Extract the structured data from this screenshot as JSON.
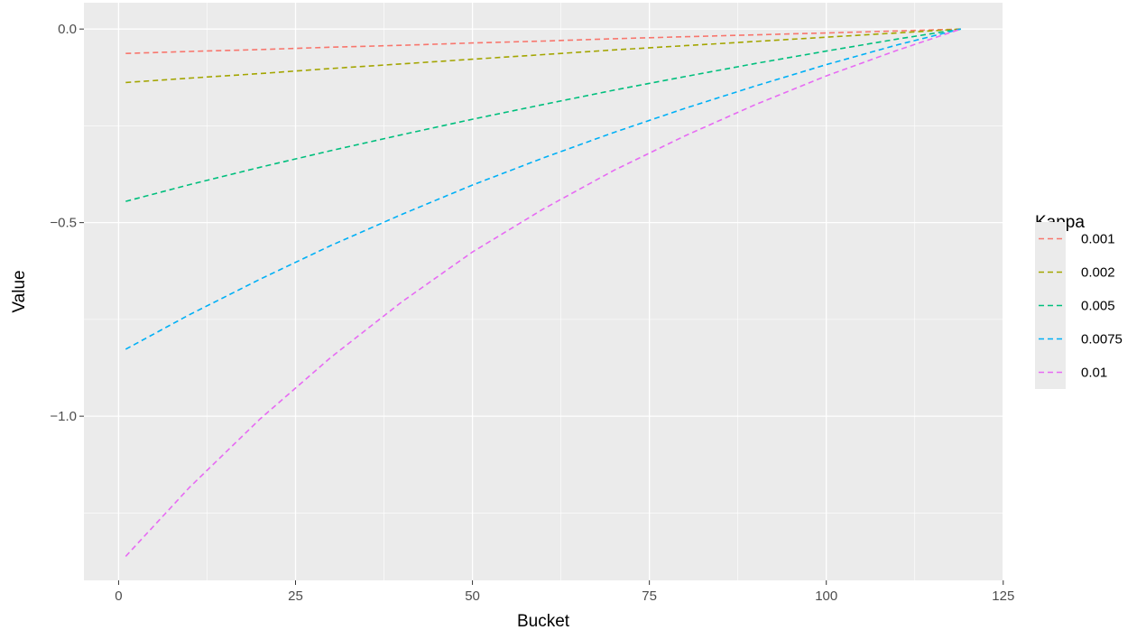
{
  "chart_data": {
    "type": "line",
    "title": "",
    "xlabel": "Bucket",
    "ylabel": "Value",
    "xlim": [
      -4.9,
      124.9
    ],
    "ylim": [
      -1.424,
      0.068
    ],
    "x_ticks": [
      0,
      25,
      50,
      75,
      100,
      125
    ],
    "x_tick_labels": [
      "0",
      "25",
      "50",
      "75",
      "100",
      "125"
    ],
    "y_ticks": [
      0.0,
      -0.5,
      -1.0
    ],
    "y_tick_labels": [
      "0.0",
      "−0.5",
      "−1.0"
    ],
    "grid": true,
    "line_style": "dashed",
    "legend": {
      "title": "Kappa",
      "position": "right"
    },
    "x": [
      1,
      10,
      20,
      30,
      40,
      50,
      60,
      70,
      80,
      90,
      100,
      110,
      119
    ],
    "series": [
      {
        "name": "0.001",
        "color": "#F8766D",
        "values": [
          -0.063,
          -0.058,
          -0.053,
          -0.047,
          -0.042,
          -0.036,
          -0.031,
          -0.025,
          -0.02,
          -0.015,
          -0.01,
          -0.005,
          0.0
        ]
      },
      {
        "name": "0.002",
        "color": "#A3A500",
        "values": [
          -0.138,
          -0.127,
          -0.115,
          -0.102,
          -0.09,
          -0.078,
          -0.066,
          -0.054,
          -0.043,
          -0.032,
          -0.021,
          -0.01,
          0.0
        ]
      },
      {
        "name": "0.005",
        "color": "#00BF7D",
        "values": [
          -0.445,
          -0.402,
          -0.357,
          -0.314,
          -0.273,
          -0.233,
          -0.195,
          -0.158,
          -0.123,
          -0.089,
          -0.057,
          -0.026,
          0.0
        ]
      },
      {
        "name": "0.0075",
        "color": "#00B0F6",
        "values": [
          -0.827,
          -0.738,
          -0.646,
          -0.559,
          -0.479,
          -0.403,
          -0.333,
          -0.267,
          -0.205,
          -0.147,
          -0.092,
          -0.041,
          0.0
        ]
      },
      {
        "name": "0.01",
        "color": "#E76BF3",
        "values": [
          -1.362,
          -1.184,
          -1.007,
          -0.848,
          -0.705,
          -0.576,
          -0.465,
          -0.365,
          -0.276,
          -0.195,
          -0.121,
          -0.055,
          0.0
        ]
      }
    ]
  }
}
